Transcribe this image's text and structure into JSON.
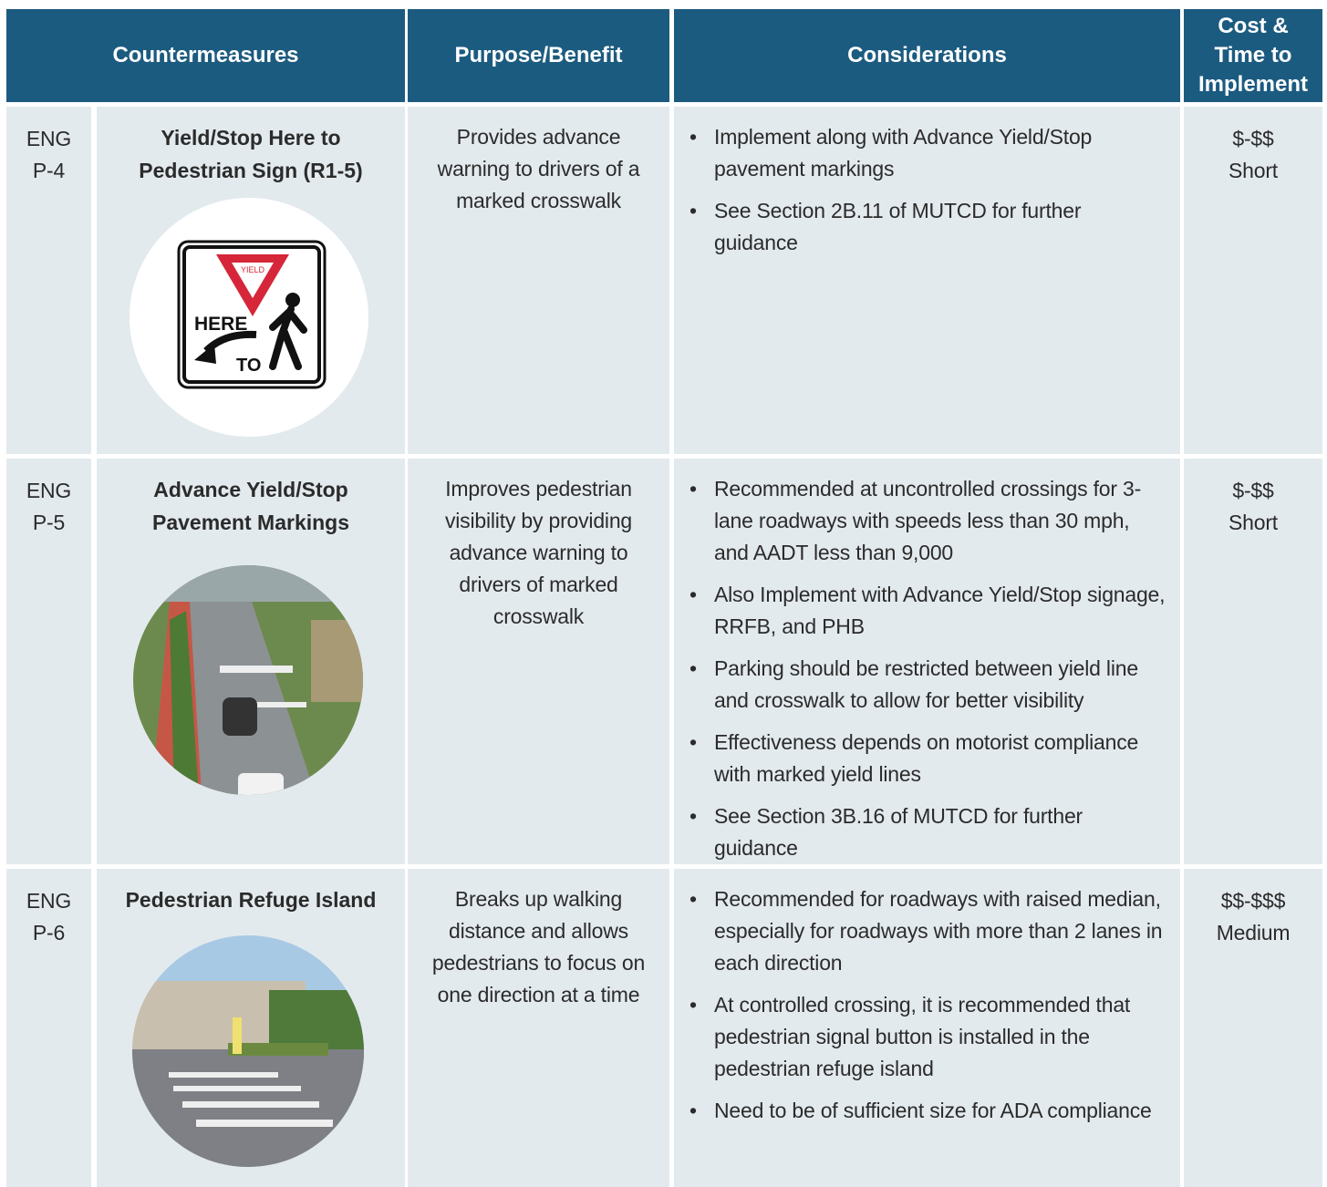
{
  "table": {
    "header": [
      "Countermeasures",
      "Purpose/Benefit",
      "Considerations",
      "Cost & Time to Implement"
    ],
    "rows": [
      {
        "id": [
          "ENG",
          "P-4"
        ],
        "name": "Yield/Stop Here to Pedestrian Sign (R1-5)",
        "purpose": "Provides advance warning to drivers of a marked crosswalk",
        "considerations": [
          "Implement along with Advance Yield/Stop pavement markings",
          "See Section 2B.11 of MUTCD for further guidance"
        ],
        "cost": [
          "$-$$",
          "Short"
        ]
      },
      {
        "id": [
          "ENG",
          "P-5"
        ],
        "name": "Advance Yield/Stop Pavement Markings",
        "purpose": "Improves pedestrian visibility by providing advance warning to drivers of marked crosswalk",
        "considerations": [
          "Recommended at uncontrolled crossings for 3-lane roadways with speeds less than 30 mph, and AADT less than 9,000",
          "Also Implement with Advance Yield/Stop signage, RRFB, and PHB",
          "Parking should be restricted between yield line and crosswalk to allow for better visibility",
          "Effectiveness depends on motorist compliance with marked yield lines",
          "See Section 3B.16 of MUTCD for further guidance"
        ],
        "cost": [
          "$-$$",
          "Short"
        ]
      },
      {
        "id": [
          "ENG",
          "P-6"
        ],
        "name": "Pedestrian Refuge Island",
        "purpose": "Breaks up walking distance and allows pedestrians to focus on one direction at a time",
        "considerations": [
          "Recommended for roadways with raised median, especially for roadways with more than 2 lanes in each direction",
          "At controlled crossing, it is recommended that pedestrian signal button is installed in the pedestrian refuge island",
          "Need to be of sufficient size for ADA compliance"
        ],
        "cost": [
          "$$-$$$",
          "Medium"
        ]
      }
    ]
  },
  "sign": {
    "yield": "YIELD",
    "here": "HERE",
    "to": "TO"
  }
}
